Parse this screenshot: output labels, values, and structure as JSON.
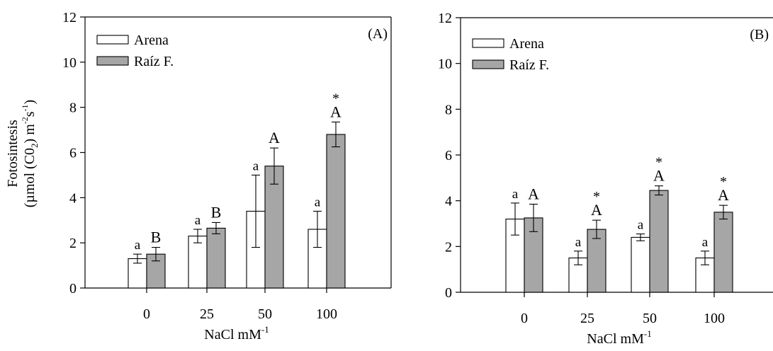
{
  "y_title_line1": "Fotosintesis",
  "y_title_line2_prefix": "(µmol (C0",
  "y_title_line2_sub": "2",
  "y_title_line2_mid": ") m",
  "y_title_line2_sup1": "-2",
  "y_title_line2_s": "s",
  "y_title_line2_sup2": "-1",
  "y_title_line2_end": ")",
  "colors": {
    "arena": "#ffffff",
    "raiz": "#a6a6a6",
    "axis": "#000000"
  },
  "chart_data": [
    {
      "type": "bar",
      "panel_label": "(A)",
      "xlabel_main": "NaCl mM",
      "xlabel_sup": "-1",
      "categories": [
        "0",
        "25",
        "50",
        "100"
      ],
      "ylim": [
        0,
        12
      ],
      "yticks": [
        "0",
        "2",
        "4",
        "6",
        "8",
        "10",
        "12"
      ],
      "legend_position": "top-left",
      "series": [
        {
          "name": "Arena",
          "values": [
            1.3,
            2.3,
            3.4,
            2.6
          ],
          "errors": [
            0.2,
            0.3,
            1.6,
            0.8
          ],
          "labels": [
            "a",
            "a",
            "a",
            "a"
          ],
          "stars": [
            "",
            "",
            "",
            ""
          ]
        },
        {
          "name": "Raíz F.",
          "values": [
            1.5,
            2.65,
            5.4,
            6.8
          ],
          "errors": [
            0.3,
            0.25,
            0.8,
            0.55
          ],
          "labels": [
            "B",
            "B",
            "A",
            "A"
          ],
          "stars": [
            "",
            "",
            "",
            "*"
          ]
        }
      ]
    },
    {
      "type": "bar",
      "panel_label": "(B)",
      "xlabel_main": "NaCl mM",
      "xlabel_sup": "-1",
      "categories": [
        "0",
        "25",
        "50",
        "100"
      ],
      "ylim": [
        0,
        12
      ],
      "yticks": [
        "0",
        "2",
        "4",
        "6",
        "8",
        "10",
        "12"
      ],
      "legend_position": "top-left",
      "series": [
        {
          "name": "Arena",
          "values": [
            3.2,
            1.5,
            2.4,
            1.5
          ],
          "errors": [
            0.7,
            0.3,
            0.15,
            0.3
          ],
          "labels": [
            "a",
            "a",
            "a",
            "a"
          ],
          "stars": [
            "",
            "",
            "",
            ""
          ]
        },
        {
          "name": "Raíz F.",
          "values": [
            3.25,
            2.75,
            4.45,
            3.5
          ],
          "errors": [
            0.6,
            0.4,
            0.2,
            0.3
          ],
          "labels": [
            "A",
            "A",
            "A",
            "A"
          ],
          "stars": [
            "",
            "*",
            "*",
            "*"
          ]
        }
      ]
    }
  ]
}
